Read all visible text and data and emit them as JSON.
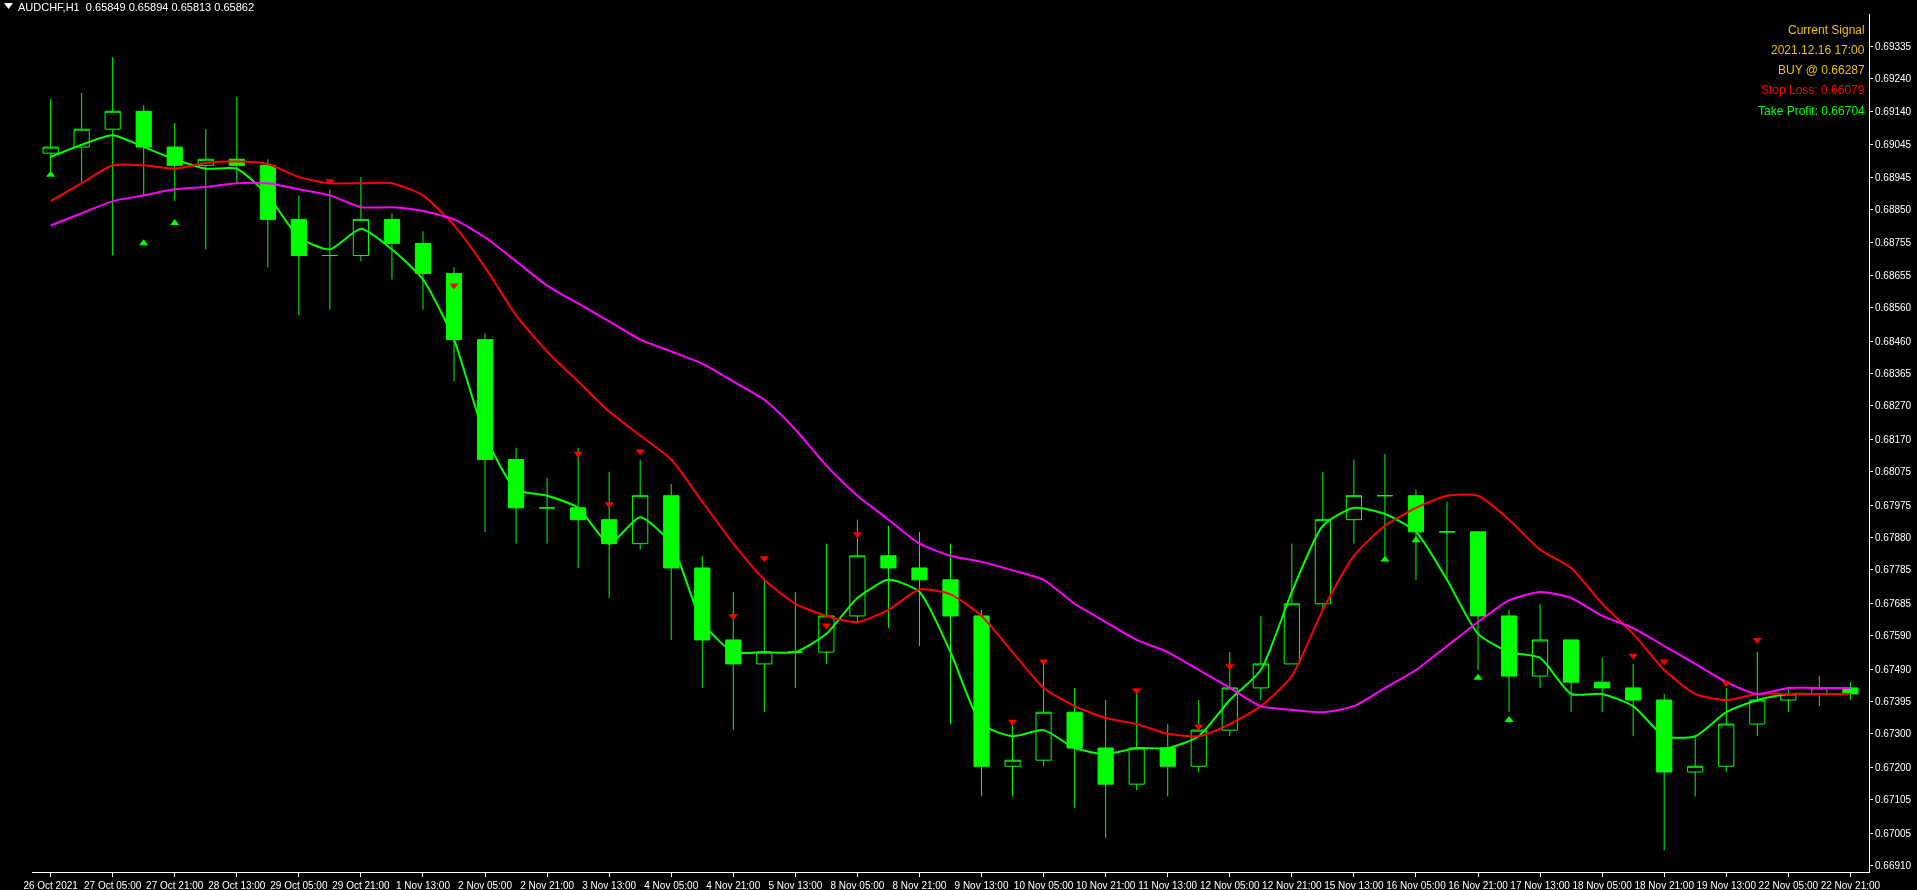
{
  "chart_data": {
    "type": "candlestick",
    "title": "AUDCHF,H1  0.65849 0.65894 0.65813 0.65862",
    "annotations": [
      "Current Signal",
      "2021.12.16 17:00",
      "BUY @ 0.66287",
      "Stop Loss: 0.66079",
      "Take Profit: 0.66704"
    ],
    "categories": [
      "26 Oct 2021",
      null,
      "27 Oct 05:00",
      null,
      "27 Oct 21:00",
      null,
      "28 Oct 13:00",
      null,
      "29 Oct 05:00",
      null,
      "29 Oct 21:00",
      null,
      "1 Nov 13:00",
      null,
      "2 Nov 05:00",
      null,
      "2 Nov 21:00",
      null,
      "3 Nov 13:00",
      null,
      "4 Nov 05:00",
      null,
      "4 Nov 21:00",
      null,
      "5 Nov 13:00",
      null,
      "8 Nov 05:00",
      null,
      "8 Nov 21:00",
      null,
      "9 Nov 13:00",
      null,
      "10 Nov 05:00",
      null,
      "10 Nov 21:00",
      null,
      "11 Nov 13:00",
      null,
      "12 Nov 05:00",
      null,
      "12 Nov 21:00",
      null,
      "15 Nov 13:00",
      null,
      "16 Nov 05:00",
      null,
      "16 Nov 21:00",
      null,
      "17 Nov 13:00",
      null,
      "18 Nov 05:00",
      null,
      "18 Nov 21:00",
      null,
      "19 Nov 13:00",
      null,
      "22 Nov 05:00",
      null,
      "22 Nov 21:00"
    ],
    "color": "#00ff00",
    "ohlc": [
      [
        0.69018,
        0.69178,
        0.68965,
        0.69036
      ],
      [
        0.69036,
        0.69196,
        0.68929,
        0.69089
      ],
      [
        0.69089,
        0.69302,
        0.68715,
        0.69142
      ],
      [
        0.69142,
        0.6916,
        0.68893,
        0.69036
      ],
      [
        0.69036,
        0.69107,
        0.68876,
        0.68982
      ],
      [
        0.68982,
        0.69089,
        0.68733,
        0.69
      ],
      [
        0.69,
        0.69185,
        0.68929,
        0.68982
      ],
      [
        0.68982,
        0.69,
        0.6868,
        0.68822
      ],
      [
        0.68822,
        0.68893,
        0.68538,
        0.68715
      ],
      [
        0.68715,
        0.68911,
        0.68555,
        0.68715
      ],
      [
        0.68715,
        0.68947,
        0.68698,
        0.68822
      ],
      [
        0.68822,
        0.6884,
        0.68644,
        0.68751
      ],
      [
        0.68751,
        0.68787,
        0.68555,
        0.68662
      ],
      [
        0.68662,
        0.6868,
        0.68342,
        0.68466
      ],
      [
        0.68466,
        0.68484,
        0.67897,
        0.68111
      ],
      [
        0.68111,
        0.68146,
        0.67862,
        0.67968
      ],
      [
        0.67968,
        0.68057,
        0.67862,
        0.67968
      ],
      [
        0.67968,
        0.68146,
        0.6779,
        0.67933
      ],
      [
        0.67933,
        0.68075,
        0.67701,
        0.67862
      ],
      [
        0.67862,
        0.68111,
        0.67844,
        0.68004
      ],
      [
        0.68004,
        0.68039,
        0.67577,
        0.6779
      ],
      [
        0.6779,
        0.67826,
        0.67435,
        0.67577
      ],
      [
        0.67577,
        0.67719,
        0.6731,
        0.67506
      ],
      [
        0.67506,
        0.67755,
        0.67363,
        0.67541
      ],
      [
        0.67541,
        0.67719,
        0.67435,
        0.67541
      ],
      [
        0.67541,
        0.67862,
        0.67506,
        0.67648
      ],
      [
        0.67648,
        0.67933,
        0.6763,
        0.67826
      ],
      [
        0.67826,
        0.67915,
        0.67612,
        0.6779
      ],
      [
        0.6779,
        0.67897,
        0.67559,
        0.67755
      ],
      [
        0.67755,
        0.67862,
        0.67328,
        0.67648
      ],
      [
        0.67648,
        0.67666,
        0.67114,
        0.67203
      ],
      [
        0.67203,
        0.67328,
        0.67114,
        0.67221
      ],
      [
        0.67221,
        0.67506,
        0.67203,
        0.67363
      ],
      [
        0.67363,
        0.67435,
        0.67079,
        0.67257
      ],
      [
        0.67257,
        0.67399,
        0.6699,
        0.6715
      ],
      [
        0.6715,
        0.67417,
        0.67132,
        0.67257
      ],
      [
        0.67257,
        0.67328,
        0.67114,
        0.67203
      ],
      [
        0.67203,
        0.67399,
        0.67186,
        0.6731
      ],
      [
        0.6731,
        0.67541,
        0.67292,
        0.67435
      ],
      [
        0.67435,
        0.67648,
        0.67399,
        0.67506
      ],
      [
        0.67506,
        0.67862,
        0.67506,
        0.67684
      ],
      [
        0.67684,
        0.68075,
        0.67666,
        0.67933
      ],
      [
        0.67933,
        0.68111,
        0.67862,
        0.68004
      ],
      [
        0.68004,
        0.68128,
        0.67826,
        0.68004
      ],
      [
        0.68004,
        0.68022,
        0.67755,
        0.67897
      ],
      [
        0.67897,
        0.67986,
        0.67755,
        0.67897
      ],
      [
        0.67897,
        0.67897,
        0.67488,
        0.67648
      ],
      [
        0.67648,
        0.67666,
        0.67363,
        0.6747
      ],
      [
        0.6747,
        0.67684,
        0.67435,
        0.67577
      ],
      [
        0.67577,
        0.67577,
        0.67363,
        0.67452
      ],
      [
        0.67452,
        0.67524,
        0.67363,
        0.67435
      ],
      [
        0.67435,
        0.67506,
        0.67292,
        0.67399
      ],
      [
        0.67399,
        0.67417,
        0.66954,
        0.67186
      ],
      [
        0.67186,
        0.67292,
        0.67114,
        0.67203
      ],
      [
        0.67203,
        0.67435,
        0.67186,
        0.67328
      ],
      [
        0.67328,
        0.67541,
        0.67292,
        0.67399
      ],
      [
        0.67399,
        0.67435,
        0.67363,
        0.67417
      ],
      [
        0.67417,
        0.6747,
        0.67381,
        0.67435
      ],
      [
        0.67435,
        0.67452,
        0.67399,
        0.67417
      ]
    ],
    "series": [
      {
        "type": "line",
        "color": "#00ff00",
        "values": [
          0.69007,
          0.69043,
          0.69071,
          0.69036,
          0.69,
          0.68972,
          0.68972,
          0.68893,
          0.68769,
          0.68733,
          0.68794,
          0.68733,
          0.68644,
          0.68466,
          0.68182,
          0.68022,
          0.68004,
          0.67968,
          0.67862,
          0.6794,
          0.67862,
          0.6763,
          0.67541,
          0.67541,
          0.67541,
          0.67595,
          0.67701,
          0.67755,
          0.67719,
          0.67541,
          0.67328,
          0.67292,
          0.6731,
          0.67257,
          0.67239,
          0.67257,
          0.67257,
          0.67292,
          0.67399,
          0.67488,
          0.67719,
          0.67915,
          0.67968,
          0.6795,
          0.67897,
          0.67755,
          0.67595,
          0.67541,
          0.67524,
          0.67417,
          0.67417,
          0.67381,
          0.67292,
          0.67292,
          0.67363,
          0.67399,
          0.67417,
          0.67417,
          0.67417
        ]
      },
      {
        "type": "line",
        "color": "#ff0000",
        "values": [
          0.68876,
          0.68929,
          0.68982,
          0.68982,
          0.68972,
          0.68989,
          0.68993,
          0.68986,
          0.68947,
          0.68929,
          0.68929,
          0.68929,
          0.68893,
          0.68804,
          0.6868,
          0.68538,
          0.68431,
          0.68342,
          0.68253,
          0.68182,
          0.68111,
          0.67986,
          0.67862,
          0.67755,
          0.67684,
          0.67648,
          0.6763,
          0.67666,
          0.67726,
          0.67712,
          0.67648,
          0.67541,
          0.67435,
          0.67381,
          0.67346,
          0.67328,
          0.67299,
          0.67292,
          0.67328,
          0.67381,
          0.6747,
          0.67666,
          0.67826,
          0.67915,
          0.67968,
          0.68004,
          0.68004,
          0.67933,
          0.67844,
          0.6779,
          0.67684,
          0.67595,
          0.67488,
          0.67417,
          0.67399,
          0.67417,
          0.67417,
          0.67417,
          0.67417
        ]
      },
      {
        "type": "line",
        "color": "#ff00ff",
        "values": [
          0.68804,
          0.6884,
          0.68876,
          0.68893,
          0.68911,
          0.68918,
          0.68929,
          0.68929,
          0.68911,
          0.68893,
          0.68858,
          0.68858,
          0.68847,
          0.68822,
          0.68769,
          0.68698,
          0.68626,
          0.68573,
          0.6852,
          0.68466,
          0.68431,
          0.68395,
          0.68342,
          0.68288,
          0.682,
          0.68093,
          0.68004,
          0.67933,
          0.67862,
          0.67826,
          0.67808,
          0.67783,
          0.67755,
          0.67684,
          0.6763,
          0.67577,
          0.67541,
          0.67488,
          0.67435,
          0.67381,
          0.6737,
          0.67363,
          0.67381,
          0.67435,
          0.67488,
          0.67559,
          0.6763,
          0.67694,
          0.67719,
          0.67701,
          0.67648,
          0.67612,
          0.67559,
          0.67506,
          0.67452,
          0.67417,
          0.67435,
          0.67435,
          0.67435
        ]
      },
      {
        "type": "scatter",
        "color": "#ff0000",
        "marker": "triangle",
        "values": [
          null,
          null,
          null,
          null,
          null,
          null,
          null,
          null,
          null,
          0.68935,
          null,
          null,
          null,
          0.68626,
          null,
          null,
          null,
          0.68128,
          0.67979,
          0.68135,
          null,
          null,
          0.67648,
          0.67819,
          null,
          0.6762,
          0.6789,
          null,
          null,
          null,
          null,
          0.67335,
          0.67513,
          null,
          null,
          0.67427,
          null,
          0.67321,
          0.67499,
          null,
          null,
          null,
          null,
          null,
          null,
          null,
          null,
          null,
          null,
          null,
          null,
          0.6753,
          0.67513,
          null,
          0.67449,
          0.67577,
          null,
          null,
          null
        ]
      },
      {
        "type": "scatter",
        "color": "#00ff00",
        "marker": "triangle",
        "values": [
          0.68954,
          null,
          null,
          0.68751,
          0.68811,
          null,
          null,
          null,
          null,
          null,
          null,
          null,
          null,
          null,
          null,
          null,
          null,
          null,
          null,
          null,
          null,
          null,
          null,
          null,
          null,
          null,
          null,
          null,
          null,
          null,
          null,
          null,
          null,
          null,
          null,
          null,
          null,
          null,
          null,
          null,
          null,
          null,
          null,
          0.67815,
          0.67872,
          null,
          0.67465,
          0.6734,
          null,
          null,
          null,
          null,
          null,
          null,
          null,
          null,
          null,
          null,
          null
        ]
      }
    ],
    "ylim": [
      0.6689,
      0.6943
    ],
    "yticks": [
      {
        "value": 0.6691,
        "label": "0.66910"
      },
      {
        "value": 0.67005,
        "label": "0.67005"
      },
      {
        "value": 0.67105,
        "label": "0.67105"
      },
      {
        "value": 0.672,
        "label": "0.67200"
      },
      {
        "value": 0.673,
        "label": "0.67300"
      },
      {
        "value": 0.67395,
        "label": "0.67395"
      },
      {
        "value": 0.6749,
        "label": "0.67490"
      },
      {
        "value": 0.6759,
        "label": "0.67590"
      },
      {
        "value": 0.67685,
        "label": "0.67685"
      },
      {
        "value": 0.67785,
        "label": "0.67785"
      },
      {
        "value": 0.6788,
        "label": "0.67880"
      },
      {
        "value": 0.67975,
        "label": "0.67975"
      },
      {
        "value": 0.68075,
        "label": "0.68075"
      },
      {
        "value": 0.6817,
        "label": "0.68170"
      },
      {
        "value": 0.6827,
        "label": "0.68270"
      },
      {
        "value": 0.68365,
        "label": "0.68365"
      },
      {
        "value": 0.6846,
        "label": "0.68460"
      },
      {
        "value": 0.6856,
        "label": "0.68560"
      },
      {
        "value": 0.68655,
        "label": "0.68655"
      },
      {
        "value": 0.68755,
        "label": "0.68755"
      },
      {
        "value": 0.6885,
        "label": "0.68850"
      },
      {
        "value": 0.68945,
        "label": "0.68945"
      },
      {
        "value": 0.69045,
        "label": "0.69045"
      },
      {
        "value": 0.6914,
        "label": "0.69140"
      },
      {
        "value": 0.6924,
        "label": "0.69240"
      },
      {
        "value": 0.69335,
        "label": "0.69335"
      }
    ],
    "grid": false
  }
}
